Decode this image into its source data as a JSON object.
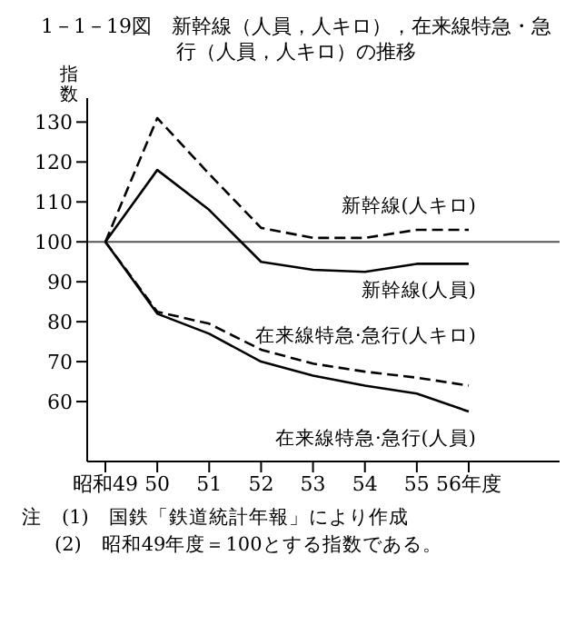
{
  "chart_data": {
    "type": "line",
    "title": "1－1－19図　新幹線（人員，人キロ），在来線特急・急行（人員，人キロ）の推移",
    "ylabel": "指数",
    "categories": [
      "昭和49",
      "50",
      "51",
      "52",
      "53",
      "54",
      "55",
      "56年度"
    ],
    "series": [
      {
        "name": "新幹線(人キロ)",
        "color": "#000000",
        "line_style": "dashed",
        "values": [
          100,
          131,
          117,
          103.5,
          101,
          101,
          103,
          103
        ]
      },
      {
        "name": "新幹線(人員)",
        "color": "#000000",
        "line_style": "solid",
        "values": [
          100,
          118,
          108,
          95,
          93,
          92.5,
          94.5,
          94.5
        ]
      },
      {
        "name": "在来線特急·急行(人キロ)",
        "color": "#000000",
        "line_style": "dashed",
        "values": [
          100,
          82.5,
          79.5,
          73,
          69.5,
          67.5,
          66,
          64
        ]
      },
      {
        "name": "在来線特急·急行(人員)",
        "color": "#000000",
        "line_style": "solid",
        "values": [
          100,
          82,
          77,
          70,
          66.5,
          64,
          62,
          57.5
        ]
      }
    ],
    "ylim": [
      45,
      136
    ],
    "yticks": [
      60,
      70,
      80,
      90,
      100,
      110,
      120,
      130
    ],
    "ref_lines": [
      {
        "axis": "y",
        "value": 100,
        "color": "#555555"
      }
    ],
    "grid": false,
    "legend": false,
    "marker": "none",
    "annotations": [
      "注　(1)　国鉄「鉄道統計年報」により作成",
      "(2)　昭和49年度＝100とする指数である。"
    ]
  }
}
